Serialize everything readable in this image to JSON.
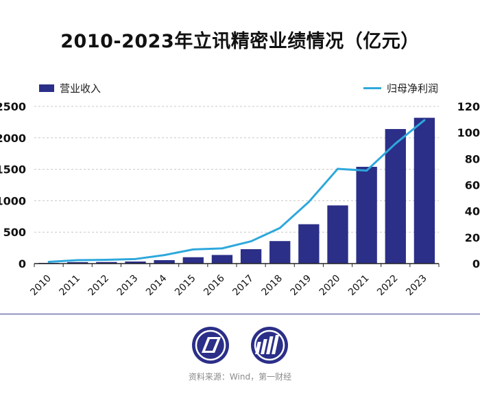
{
  "title": "2010-2023年立讯精密业绩情况（亿元）",
  "legend": {
    "bar_label": "营业收入",
    "line_label": "归母净利润"
  },
  "source": "资料来源：Wind，第一财经",
  "colors": {
    "bar": "#2b2f88",
    "line": "#2ea8dc",
    "grid": "#c8c8c8",
    "axis": "#222222"
  },
  "logo_icons": [
    "publisher-logo-left-icon",
    "publisher-logo-right-icon"
  ],
  "chart_data": {
    "type": "bar+line",
    "categories": [
      "2010",
      "2011",
      "2012",
      "2013",
      "2014",
      "2015",
      "2016",
      "2017",
      "2018",
      "2019",
      "2020",
      "2021",
      "2022",
      "2023"
    ],
    "series": [
      {
        "name": "营业收入",
        "type": "bar",
        "axis": "left",
        "values": [
          11,
          23,
          25,
          33,
          55,
          101,
          137,
          229,
          358,
          626,
          925,
          1539,
          2140,
          2319
        ]
      },
      {
        "name": "归母净利润",
        "type": "line",
        "axis": "right",
        "values": [
          1.3,
          2.6,
          2.9,
          3.5,
          6.5,
          10.8,
          11.6,
          17.0,
          27.2,
          47.1,
          72.3,
          71.0,
          91.6,
          109.5
        ]
      }
    ],
    "left_axis": {
      "min": 0,
      "max": 2500,
      "ticks": [
        0,
        500,
        1000,
        1500,
        2000,
        2500
      ]
    },
    "right_axis": {
      "min": 0,
      "max": 120,
      "ticks": [
        0,
        20,
        40,
        60,
        80,
        100,
        120
      ]
    },
    "xlabel": "",
    "ylabel": "",
    "grid": true,
    "legend_position": "top"
  }
}
